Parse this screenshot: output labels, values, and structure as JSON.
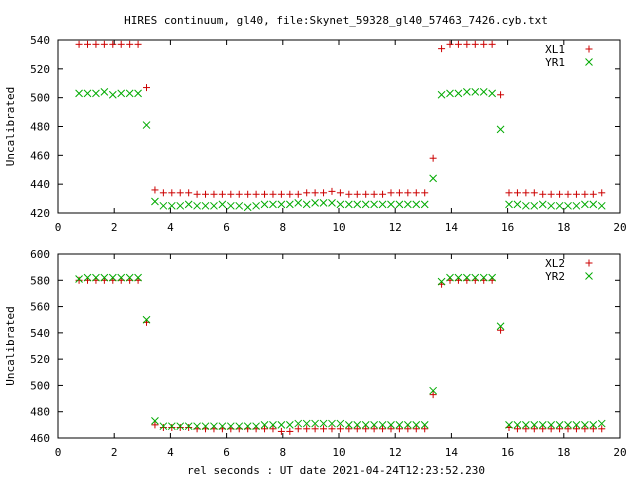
{
  "chart_data": {
    "title": "HIRES continuum, gl40, file:Skynet_59328_gl40_57463_7426.cyb.txt",
    "xlabel": "rel seconds : UT date 2021-04-24T12:23:52.230",
    "x_ticks": [
      "0",
      "2",
      "4",
      "6",
      "8",
      "10",
      "12",
      "14",
      "16",
      "18",
      "20"
    ],
    "xlim": [
      0,
      20
    ],
    "x": [
      0.75,
      1.05,
      1.35,
      1.65,
      1.95,
      2.25,
      2.55,
      2.85,
      3.15,
      3.45,
      3.75,
      4.05,
      4.35,
      4.65,
      4.95,
      5.25,
      5.55,
      5.85,
      6.15,
      6.45,
      6.75,
      7.05,
      7.35,
      7.65,
      7.95,
      8.25,
      8.55,
      8.85,
      9.15,
      9.45,
      9.75,
      10.05,
      10.35,
      10.65,
      10.95,
      11.25,
      11.55,
      11.85,
      12.15,
      12.45,
      12.75,
      13.05,
      13.35,
      13.65,
      13.95,
      14.25,
      14.55,
      14.85,
      15.15,
      15.45,
      15.75,
      16.05,
      16.35,
      16.65,
      16.95,
      17.25,
      17.55,
      17.85,
      18.15,
      18.45,
      18.75,
      19.05,
      19.35
    ],
    "panels": [
      {
        "ylabel": "Uncalibrated",
        "ylim": [
          420,
          540
        ],
        "y_ticks": [
          "420",
          "440",
          "460",
          "480",
          "500",
          "520",
          "540"
        ],
        "legend_position": "top-right",
        "series": [
          {
            "name": "XL1",
            "marker": "+",
            "color": "#cc0000",
            "values": [
              537,
              537,
              537,
              537,
              537,
              537,
              537,
              537,
              507,
              436,
              434,
              434,
              434,
              434,
              433,
              433,
              433,
              433,
              433,
              433,
              433,
              433,
              433,
              433,
              433,
              433,
              433,
              434,
              434,
              434,
              435,
              434,
              433,
              433,
              433,
              433,
              433,
              434,
              434,
              434,
              434,
              434,
              458,
              534,
              537,
              537,
              537,
              537,
              537,
              537,
              502,
              434,
              434,
              434,
              434,
              433,
              433,
              433,
              433,
              433,
              433,
              433,
              434
            ]
          },
          {
            "name": "YR1",
            "marker": "x",
            "color": "#00aa00",
            "values": [
              503,
              503,
              503,
              504,
              502,
              503,
              503,
              503,
              481,
              428,
              425,
              425,
              425,
              426,
              425,
              425,
              425,
              426,
              425,
              425,
              424,
              425,
              426,
              426,
              426,
              426,
              427,
              426,
              427,
              427,
              427,
              426,
              426,
              426,
              426,
              426,
              426,
              426,
              426,
              426,
              426,
              426,
              444,
              502,
              503,
              503,
              504,
              504,
              504,
              503,
              478,
              426,
              426,
              425,
              425,
              426,
              425,
              425,
              425,
              425,
              426,
              426,
              425
            ]
          }
        ]
      },
      {
        "ylabel": "Uncalibrated",
        "ylim": [
          460,
          600
        ],
        "y_ticks": [
          "460",
          "480",
          "500",
          "520",
          "540",
          "560",
          "580",
          "600"
        ],
        "legend_position": "top-right",
        "series": [
          {
            "name": "XL2",
            "marker": "+",
            "color": "#cc0000",
            "values": [
              580,
              580,
              580,
              580,
              580,
              580,
              580,
              580,
              548,
              470,
              468,
              468,
              468,
              468,
              467,
              467,
              467,
              467,
              467,
              467,
              467,
              467,
              467,
              467,
              465,
              465,
              467,
              467,
              467,
              467,
              467,
              467,
              467,
              467,
              467,
              467,
              467,
              467,
              467,
              467,
              467,
              467,
              493,
              577,
              580,
              580,
              580,
              580,
              580,
              580,
              542,
              468,
              467,
              467,
              467,
              467,
              467,
              467,
              467,
              467,
              467,
              467,
              467
            ]
          },
          {
            "name": "YR2",
            "marker": "x",
            "color": "#00aa00",
            "values": [
              581,
              582,
              582,
              582,
              582,
              582,
              582,
              582,
              550,
              473,
              469,
              469,
              469,
              469,
              469,
              469,
              469,
              469,
              469,
              469,
              469,
              469,
              470,
              470,
              470,
              470,
              471,
              471,
              471,
              471,
              471,
              471,
              470,
              470,
              470,
              470,
              470,
              470,
              470,
              470,
              470,
              470,
              496,
              579,
              582,
              582,
              582,
              582,
              582,
              582,
              545,
              470,
              470,
              470,
              470,
              470,
              470,
              470,
              470,
              470,
              470,
              470,
              471
            ]
          }
        ]
      }
    ]
  }
}
